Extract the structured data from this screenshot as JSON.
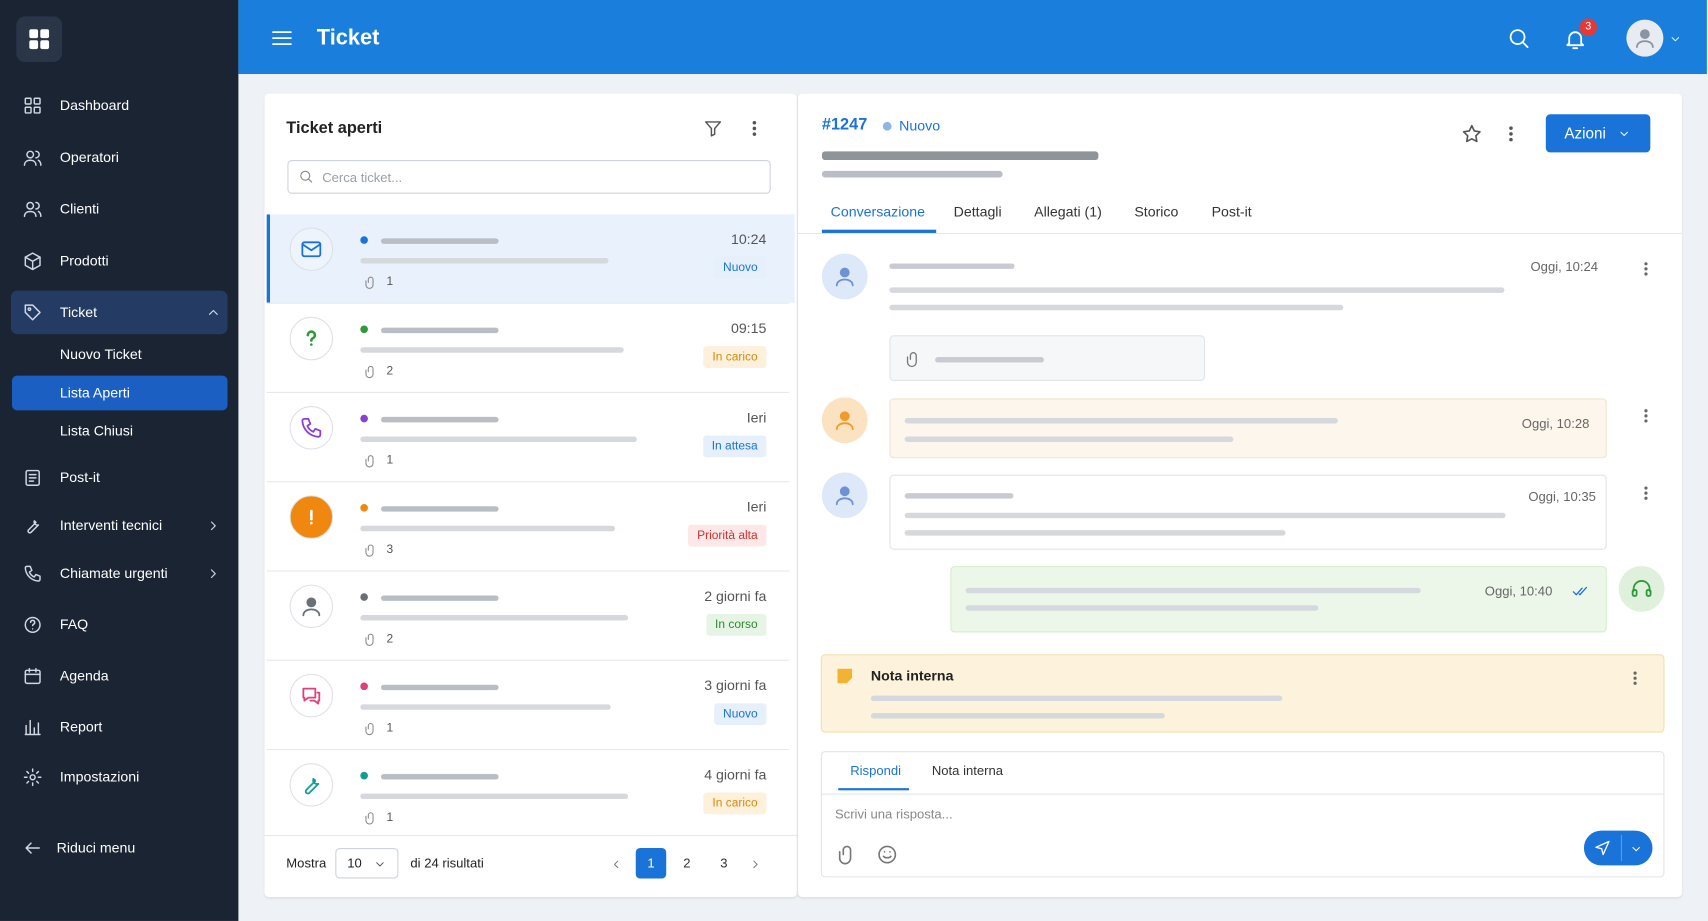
{
  "header": {
    "title": "Ticket",
    "notifications": 3
  },
  "sidebar": {
    "items": [
      "Dashboard",
      "Operatori",
      "Clienti",
      "Prodotti",
      "Ticket",
      "Nuovo Ticket",
      "Lista Aperti",
      "Lista Chiusi",
      "Post-it",
      "Interventi tecnici",
      "Chiamate urgenti",
      "FAQ",
      "Agenda",
      "Report",
      "Impostazioni"
    ],
    "collapse": "Riduci menu"
  },
  "list": {
    "title": "Ticket aperti",
    "search_placeholder": "Cerca ticket...",
    "tickets": [
      {
        "time": "10:24",
        "status": "Nuovo",
        "attachments": 1
      },
      {
        "time": "09:15",
        "status": "In carico",
        "attachments": 2
      },
      {
        "time": "Ieri",
        "status": "In attesa",
        "attachments": 1
      },
      {
        "time": "Ieri",
        "status": "Priorità alta",
        "attachments": 3
      },
      {
        "time": "2 giorni fa",
        "status": "In corso",
        "attachments": 2
      },
      {
        "time": "3 giorni fa",
        "status": "Nuovo",
        "attachments": 1
      },
      {
        "time": "4 giorni fa",
        "status": "In carico",
        "attachments": 1
      }
    ],
    "footer": {
      "show": "Mostra",
      "page_size": 10,
      "results": "di 24 risultati",
      "pages": [
        1,
        2,
        3
      ]
    }
  },
  "detail": {
    "id": "#1247",
    "status": "Nuovo",
    "action": "Azioni",
    "tabs": [
      "Conversazione",
      "Dettagli",
      "Allegati (1)",
      "Storico",
      "Post-it"
    ],
    "messages": [
      {
        "time": "Oggi, 10:24"
      },
      {
        "time": "Oggi, 10:28"
      },
      {
        "time": "Oggi, 10:35"
      },
      {
        "time": "Oggi, 10:40"
      }
    ],
    "note": {
      "title": "Nota interna"
    },
    "reply": {
      "tabs": [
        "Rispondi",
        "Nota interna"
      ],
      "placeholder": "Scrivi una risposta..."
    }
  }
}
